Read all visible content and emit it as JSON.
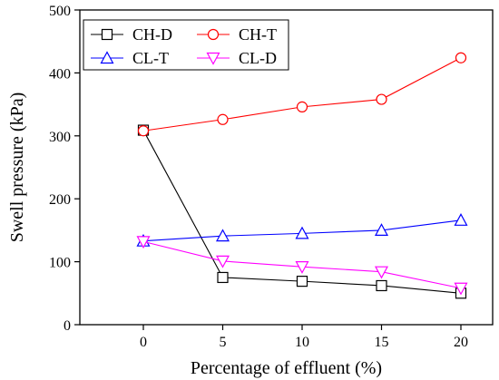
{
  "chart_data": {
    "type": "line",
    "title": "",
    "xlabel": "Percentage of effluent (%)",
    "ylabel": "Swell pressure (kPa)",
    "xlim": [
      -4,
      22
    ],
    "ylim": [
      0,
      500
    ],
    "xticks": [
      0,
      5,
      10,
      15,
      20
    ],
    "yticks": [
      0,
      100,
      200,
      300,
      400,
      500
    ],
    "grid": false,
    "legend_position": "top",
    "x": [
      0,
      5,
      10,
      15,
      20
    ],
    "series": [
      {
        "name": "CH-D",
        "values": [
          309,
          75,
          69,
          62,
          50
        ],
        "color": "#000000",
        "marker": "square"
      },
      {
        "name": "CH-T",
        "values": [
          308,
          326,
          346,
          358,
          424
        ],
        "color": "#ff0000",
        "marker": "circle"
      },
      {
        "name": "CL-T",
        "values": [
          133,
          141,
          145,
          150,
          166
        ],
        "color": "#0000ff",
        "marker": "triangle-up"
      },
      {
        "name": "CL-D",
        "values": [
          132,
          101,
          92,
          84,
          58
        ],
        "color": "#ff00ff",
        "marker": "triangle-down"
      }
    ]
  }
}
